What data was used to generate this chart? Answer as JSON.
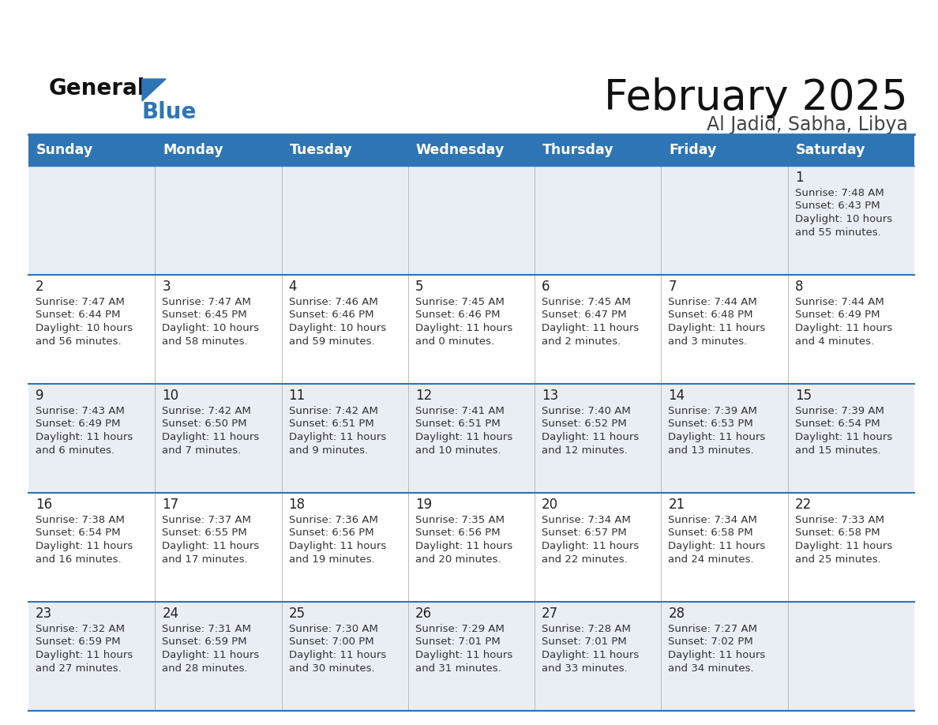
{
  "title": "February 2025",
  "subtitle": "Al Jadid, Sabha, Libya",
  "header_color": "#2E75B6",
  "header_text_color": "#FFFFFF",
  "days_of_week": [
    "Sunday",
    "Monday",
    "Tuesday",
    "Wednesday",
    "Thursday",
    "Friday",
    "Saturday"
  ],
  "bg_color": "#FFFFFF",
  "cell_bg_row0": "#E8EEF4",
  "cell_bg_row1": "#FFFFFF",
  "cell_bg_row2": "#E8EEF4",
  "cell_bg_row3": "#FFFFFF",
  "cell_bg_row4": "#E8EEF4",
  "separator_color": "#2E75B6",
  "day_num_color": "#222222",
  "info_text_color": "#333333",
  "calendar_data": [
    [
      null,
      null,
      null,
      null,
      null,
      null,
      {
        "day": 1,
        "sunrise": "7:48 AM",
        "sunset": "6:43 PM",
        "daylight_l1": "Daylight: 10 hours",
        "daylight_l2": "and 55 minutes."
      }
    ],
    [
      {
        "day": 2,
        "sunrise": "7:47 AM",
        "sunset": "6:44 PM",
        "daylight_l1": "Daylight: 10 hours",
        "daylight_l2": "and 56 minutes."
      },
      {
        "day": 3,
        "sunrise": "7:47 AM",
        "sunset": "6:45 PM",
        "daylight_l1": "Daylight: 10 hours",
        "daylight_l2": "and 58 minutes."
      },
      {
        "day": 4,
        "sunrise": "7:46 AM",
        "sunset": "6:46 PM",
        "daylight_l1": "Daylight: 10 hours",
        "daylight_l2": "and 59 minutes."
      },
      {
        "day": 5,
        "sunrise": "7:45 AM",
        "sunset": "6:46 PM",
        "daylight_l1": "Daylight: 11 hours",
        "daylight_l2": "and 0 minutes."
      },
      {
        "day": 6,
        "sunrise": "7:45 AM",
        "sunset": "6:47 PM",
        "daylight_l1": "Daylight: 11 hours",
        "daylight_l2": "and 2 minutes."
      },
      {
        "day": 7,
        "sunrise": "7:44 AM",
        "sunset": "6:48 PM",
        "daylight_l1": "Daylight: 11 hours",
        "daylight_l2": "and 3 minutes."
      },
      {
        "day": 8,
        "sunrise": "7:44 AM",
        "sunset": "6:49 PM",
        "daylight_l1": "Daylight: 11 hours",
        "daylight_l2": "and 4 minutes."
      }
    ],
    [
      {
        "day": 9,
        "sunrise": "7:43 AM",
        "sunset": "6:49 PM",
        "daylight_l1": "Daylight: 11 hours",
        "daylight_l2": "and 6 minutes."
      },
      {
        "day": 10,
        "sunrise": "7:42 AM",
        "sunset": "6:50 PM",
        "daylight_l1": "Daylight: 11 hours",
        "daylight_l2": "and 7 minutes."
      },
      {
        "day": 11,
        "sunrise": "7:42 AM",
        "sunset": "6:51 PM",
        "daylight_l1": "Daylight: 11 hours",
        "daylight_l2": "and 9 minutes."
      },
      {
        "day": 12,
        "sunrise": "7:41 AM",
        "sunset": "6:51 PM",
        "daylight_l1": "Daylight: 11 hours",
        "daylight_l2": "and 10 minutes."
      },
      {
        "day": 13,
        "sunrise": "7:40 AM",
        "sunset": "6:52 PM",
        "daylight_l1": "Daylight: 11 hours",
        "daylight_l2": "and 12 minutes."
      },
      {
        "day": 14,
        "sunrise": "7:39 AM",
        "sunset": "6:53 PM",
        "daylight_l1": "Daylight: 11 hours",
        "daylight_l2": "and 13 minutes."
      },
      {
        "day": 15,
        "sunrise": "7:39 AM",
        "sunset": "6:54 PM",
        "daylight_l1": "Daylight: 11 hours",
        "daylight_l2": "and 15 minutes."
      }
    ],
    [
      {
        "day": 16,
        "sunrise": "7:38 AM",
        "sunset": "6:54 PM",
        "daylight_l1": "Daylight: 11 hours",
        "daylight_l2": "and 16 minutes."
      },
      {
        "day": 17,
        "sunrise": "7:37 AM",
        "sunset": "6:55 PM",
        "daylight_l1": "Daylight: 11 hours",
        "daylight_l2": "and 17 minutes."
      },
      {
        "day": 18,
        "sunrise": "7:36 AM",
        "sunset": "6:56 PM",
        "daylight_l1": "Daylight: 11 hours",
        "daylight_l2": "and 19 minutes."
      },
      {
        "day": 19,
        "sunrise": "7:35 AM",
        "sunset": "6:56 PM",
        "daylight_l1": "Daylight: 11 hours",
        "daylight_l2": "and 20 minutes."
      },
      {
        "day": 20,
        "sunrise": "7:34 AM",
        "sunset": "6:57 PM",
        "daylight_l1": "Daylight: 11 hours",
        "daylight_l2": "and 22 minutes."
      },
      {
        "day": 21,
        "sunrise": "7:34 AM",
        "sunset": "6:58 PM",
        "daylight_l1": "Daylight: 11 hours",
        "daylight_l2": "and 24 minutes."
      },
      {
        "day": 22,
        "sunrise": "7:33 AM",
        "sunset": "6:58 PM",
        "daylight_l1": "Daylight: 11 hours",
        "daylight_l2": "and 25 minutes."
      }
    ],
    [
      {
        "day": 23,
        "sunrise": "7:32 AM",
        "sunset": "6:59 PM",
        "daylight_l1": "Daylight: 11 hours",
        "daylight_l2": "and 27 minutes."
      },
      {
        "day": 24,
        "sunrise": "7:31 AM",
        "sunset": "6:59 PM",
        "daylight_l1": "Daylight: 11 hours",
        "daylight_l2": "and 28 minutes."
      },
      {
        "day": 25,
        "sunrise": "7:30 AM",
        "sunset": "7:00 PM",
        "daylight_l1": "Daylight: 11 hours",
        "daylight_l2": "and 30 minutes."
      },
      {
        "day": 26,
        "sunrise": "7:29 AM",
        "sunset": "7:01 PM",
        "daylight_l1": "Daylight: 11 hours",
        "daylight_l2": "and 31 minutes."
      },
      {
        "day": 27,
        "sunrise": "7:28 AM",
        "sunset": "7:01 PM",
        "daylight_l1": "Daylight: 11 hours",
        "daylight_l2": "and 33 minutes."
      },
      {
        "day": 28,
        "sunrise": "7:27 AM",
        "sunset": "7:02 PM",
        "daylight_l1": "Daylight: 11 hours",
        "daylight_l2": "and 34 minutes."
      },
      null
    ]
  ],
  "logo_general_color": "#111111",
  "logo_blue_color": "#2E75B6",
  "logo_triangle_color": "#2E75B6"
}
